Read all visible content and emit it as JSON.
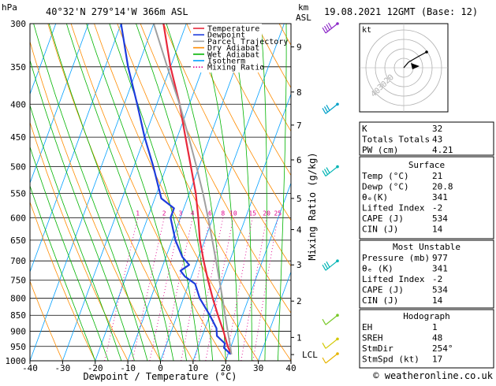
{
  "header": {
    "location": "40°32'N  279°14'W  366m  ASL",
    "datetime": "19.08.2021  12GMT  (Base: 12)",
    "hpa_label": "hPa",
    "km_label": "km",
    "asl_label": "ASL"
  },
  "legend": [
    {
      "label": "Temperature",
      "color": "#e8283c",
      "style": "solid"
    },
    {
      "label": "Dewpoint",
      "color": "#1e3cdc",
      "style": "solid"
    },
    {
      "label": "Parcel Trajectory",
      "color": "#a0a0a0",
      "style": "solid"
    },
    {
      "label": "Dry Adiabat",
      "color": "#ff8c00",
      "style": "solid"
    },
    {
      "label": "Wet Adiabat",
      "color": "#00b400",
      "style": "solid"
    },
    {
      "label": "Isotherm",
      "color": "#00a0ff",
      "style": "solid"
    },
    {
      "label": "Mixing Ratio",
      "color": "#e0008c",
      "style": "dotted"
    }
  ],
  "chart_data": {
    "type": "line",
    "title": "",
    "xlabel": "Dewpoint / Temperature (°C)",
    "ylabel": "Mixing Ratio (g/kg)",
    "xlim": [
      -40,
      40
    ],
    "ylim": [
      1000,
      300
    ],
    "y_scale": "log",
    "skew": true,
    "pressure_ticks": [
      300,
      350,
      400,
      450,
      500,
      550,
      600,
      650,
      700,
      750,
      800,
      850,
      900,
      950,
      1000
    ],
    "temp_ticks": [
      -40,
      -30,
      -20,
      -10,
      0,
      10,
      20,
      30,
      40
    ],
    "km_ticks": [
      {
        "label": "9",
        "p": 326
      },
      {
        "label": "8",
        "p": 383
      },
      {
        "label": "7",
        "p": 431
      },
      {
        "label": "6",
        "p": 488
      },
      {
        "label": "5",
        "p": 560
      },
      {
        "label": "4",
        "p": 626
      },
      {
        "label": "3",
        "p": 710
      },
      {
        "label": "2",
        "p": 808
      },
      {
        "label": "1",
        "p": 920
      },
      {
        "label": "LCL",
        "p": 978
      }
    ],
    "mixing_ratio_labels": [
      "1",
      "2",
      "3",
      "4",
      "6",
      "8",
      "10",
      "15",
      "20",
      "25"
    ],
    "mixing_ratio_values": [
      1,
      2,
      3,
      4,
      6,
      8,
      10,
      15,
      20,
      25
    ],
    "series": [
      {
        "name": "Temperature",
        "color": "#e8283c",
        "points": [
          [
            977,
            21
          ],
          [
            950,
            19
          ],
          [
            900,
            16
          ],
          [
            850,
            12.5
          ],
          [
            800,
            9
          ],
          [
            750,
            5.5
          ],
          [
            700,
            2
          ],
          [
            650,
            -1.5
          ],
          [
            600,
            -4.5
          ],
          [
            550,
            -8
          ],
          [
            500,
            -12.5
          ],
          [
            450,
            -17.5
          ],
          [
            400,
            -23
          ],
          [
            350,
            -30
          ],
          [
            300,
            -37
          ]
        ]
      },
      {
        "name": "Dewpoint",
        "color": "#1e3cdc",
        "points": [
          [
            977,
            20.8
          ],
          [
            955,
            18
          ],
          [
            940,
            17.8
          ],
          [
            915,
            14.5
          ],
          [
            890,
            13.5
          ],
          [
            850,
            10
          ],
          [
            800,
            5
          ],
          [
            760,
            2
          ],
          [
            740,
            -2
          ],
          [
            725,
            -4
          ],
          [
            710,
            -2
          ],
          [
            690,
            -5
          ],
          [
            650,
            -9
          ],
          [
            600,
            -13
          ],
          [
            580,
            -13
          ],
          [
            560,
            -18
          ],
          [
            500,
            -24
          ],
          [
            450,
            -30
          ],
          [
            400,
            -36
          ],
          [
            350,
            -43
          ],
          [
            300,
            -50
          ]
        ]
      },
      {
        "name": "Parcel Trajectory",
        "color": "#a0a0a0",
        "points": [
          [
            977,
            21
          ],
          [
            950,
            19.8
          ],
          [
            900,
            17.3
          ],
          [
            850,
            14.7
          ],
          [
            800,
            12
          ],
          [
            750,
            9
          ],
          [
            700,
            5.8
          ],
          [
            650,
            2.3
          ],
          [
            600,
            -1.5
          ],
          [
            550,
            -5.8
          ],
          [
            500,
            -10.8
          ],
          [
            450,
            -16.5
          ],
          [
            400,
            -23
          ],
          [
            350,
            -31
          ],
          [
            300,
            -40
          ]
        ]
      }
    ],
    "wind_barbs": [
      {
        "p": 300,
        "color": "#8c28c8"
      },
      {
        "p": 400,
        "color": "#00a0c8"
      },
      {
        "p": 500,
        "color": "#00b4b4"
      },
      {
        "p": 700,
        "color": "#00b4b4"
      },
      {
        "p": 850,
        "color": "#78c828"
      },
      {
        "p": 925,
        "color": "#d2c800"
      },
      {
        "p": 975,
        "color": "#e6b400"
      }
    ]
  },
  "hodograph": {
    "unit_label": "kt",
    "ring_labels": [
      "20",
      "30",
      "40"
    ]
  },
  "indices": {
    "rows": [
      {
        "label": "K",
        "value": "32"
      },
      {
        "label": "Totals Totals",
        "value": "43"
      },
      {
        "label": "PW (cm)",
        "value": "4.21"
      }
    ]
  },
  "surface": {
    "title": "Surface",
    "rows": [
      {
        "label": "Temp (°C)",
        "value": "21"
      },
      {
        "label": "Dewp (°C)",
        "value": "20.8"
      },
      {
        "label": "θₑ(K)",
        "value": "341"
      },
      {
        "label": "Lifted Index",
        "value": "-2"
      },
      {
        "label": "CAPE (J)",
        "value": "534"
      },
      {
        "label": "CIN (J)",
        "value": "14"
      }
    ]
  },
  "most_unstable": {
    "title": "Most Unstable",
    "rows": [
      {
        "label": "Pressure (mb)",
        "value": "977"
      },
      {
        "label": "θₑ (K)",
        "value": "341"
      },
      {
        "label": "Lifted Index",
        "value": "-2"
      },
      {
        "label": "CAPE (J)",
        "value": "534"
      },
      {
        "label": "CIN (J)",
        "value": "14"
      }
    ]
  },
  "hodograph_table": {
    "title": "Hodograph",
    "rows": [
      {
        "label": "EH",
        "value": "1"
      },
      {
        "label": "SREH",
        "value": "48"
      },
      {
        "label": "StmDir",
        "value": "254°"
      },
      {
        "label": "StmSpd (kt)",
        "value": "17"
      }
    ]
  },
  "footer": {
    "copyright": "© weatheronline.co.uk"
  }
}
